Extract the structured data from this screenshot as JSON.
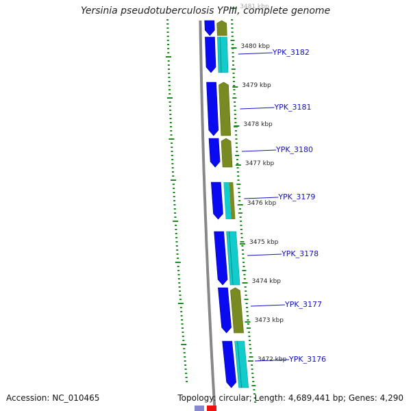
{
  "title": "Yersinia pseudotuberculosis YPIII, complete genome",
  "footer": {
    "accession": "Accession: NC_010465",
    "stats": "Topology: circular; Length: 4,689,441 bp; Genes: 4,290"
  },
  "colors": {
    "forward_cds": "#0a0af0",
    "reverse_cds": "#7a8a22",
    "rna_feature": "#12cccc",
    "backbone": "#888888",
    "gc_skew": "#1c8a1c",
    "label": "#1010c0",
    "tick_text": "#222222"
  },
  "map": {
    "scale_ticks": [
      {
        "label": "3481 kbp",
        "faded": true
      },
      {
        "label": "3480 kbp"
      },
      {
        "label": "3479 kbp"
      },
      {
        "label": "3478 kbp"
      },
      {
        "label": "3477 kbp"
      },
      {
        "label": "3476 kbp"
      },
      {
        "label": "3475 kbp"
      },
      {
        "label": "3474 kbp"
      },
      {
        "label": "3473 kbp"
      },
      {
        "label": "3472 kbp"
      }
    ],
    "gene_labels": [
      {
        "name": "YPK_3182"
      },
      {
        "name": "YPK_3181"
      },
      {
        "name": "YPK_3180"
      },
      {
        "name": "YPK_3179"
      },
      {
        "name": "YPK_3178"
      },
      {
        "name": "YPK_3177"
      },
      {
        "name": "YPK_3176"
      }
    ]
  }
}
